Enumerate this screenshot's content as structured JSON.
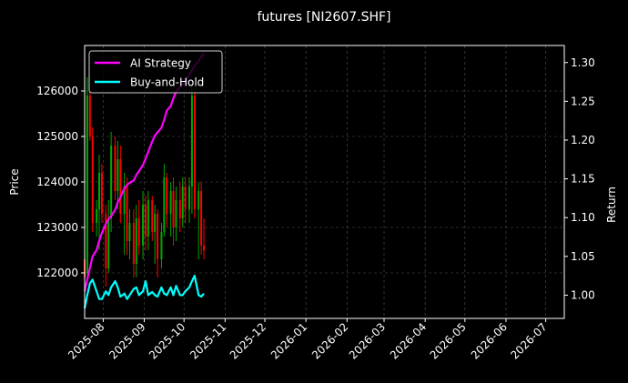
{
  "chart_data": {
    "type": "candlestick+line",
    "title": "futures [NI2607.SHF]",
    "xlabel": "",
    "ylabel_left": "Price",
    "ylabel_right": "Return",
    "x_tick_labels": [
      "2025-08",
      "2025-09",
      "2025-10",
      "2025-11",
      "2025-12",
      "2026-01",
      "2026-02",
      "2026-03",
      "2026-04",
      "2026-05",
      "2026-06",
      "2026-07"
    ],
    "y_left_ticks": [
      122000,
      123000,
      124000,
      125000,
      126000
    ],
    "y_right_ticks": [
      1.0,
      1.05,
      1.1,
      1.15,
      1.2,
      1.25,
      1.3
    ],
    "y_right_tick_labels": [
      "1.00",
      "1.05",
      "1.10",
      "1.15",
      "1.20",
      "1.25",
      "1.30"
    ],
    "y_left_lim": [
      121000,
      127000
    ],
    "y_right_lim": [
      0.97,
      1.322
    ],
    "x_lim": [
      "2025-07-18",
      "2026-07-15"
    ],
    "grid": true,
    "legend_position": "top-left",
    "colors": {
      "background": "#000000",
      "ai_strategy": "#ff00ff",
      "buy_and_hold": "#00ffff",
      "up_candle": "#00aa00",
      "down_candle": "#ff0000",
      "grid": "#555555",
      "text": "#ffffff"
    },
    "series": [
      {
        "name": "AI Strategy",
        "axis": "right",
        "x": [
          "2025-07-18",
          "2025-07-20",
          "2025-07-22",
          "2025-07-24",
          "2025-07-27",
          "2025-07-29",
          "2025-07-31",
          "2025-08-03",
          "2025-08-05",
          "2025-08-07",
          "2025-08-10",
          "2025-08-12",
          "2025-08-14",
          "2025-08-17",
          "2025-08-19",
          "2025-08-21",
          "2025-08-24",
          "2025-08-26",
          "2025-08-28",
          "2025-08-31",
          "2025-09-02",
          "2025-09-04",
          "2025-09-07",
          "2025-09-09",
          "2025-09-11",
          "2025-09-14",
          "2025-09-16",
          "2025-09-18",
          "2025-09-21",
          "2025-09-23",
          "2025-09-25",
          "2025-09-28",
          "2025-09-30",
          "2025-10-02",
          "2025-10-05",
          "2025-10-07",
          "2025-10-09",
          "2025-10-12",
          "2025-10-16"
        ],
        "values": [
          1.005,
          1.02,
          1.035,
          1.05,
          1.058,
          1.07,
          1.08,
          1.092,
          1.098,
          1.102,
          1.11,
          1.12,
          1.126,
          1.138,
          1.142,
          1.145,
          1.148,
          1.155,
          1.16,
          1.168,
          1.176,
          1.185,
          1.198,
          1.206,
          1.21,
          1.216,
          1.226,
          1.238,
          1.244,
          1.254,
          1.262,
          1.268,
          1.272,
          1.276,
          1.284,
          1.29,
          1.296,
          1.302,
          1.312
        ]
      },
      {
        "name": "Buy-and-Hold",
        "axis": "right",
        "x": [
          "2025-07-18",
          "2025-07-20",
          "2025-07-22",
          "2025-07-24",
          "2025-07-27",
          "2025-07-29",
          "2025-07-31",
          "2025-08-03",
          "2025-08-05",
          "2025-08-07",
          "2025-08-10",
          "2025-08-12",
          "2025-08-14",
          "2025-08-17",
          "2025-08-19",
          "2025-08-21",
          "2025-08-24",
          "2025-08-26",
          "2025-08-28",
          "2025-08-31",
          "2025-09-02",
          "2025-09-04",
          "2025-09-07",
          "2025-09-09",
          "2025-09-11",
          "2025-09-14",
          "2025-09-16",
          "2025-09-18",
          "2025-09-21",
          "2025-09-23",
          "2025-09-25",
          "2025-09-28",
          "2025-09-30",
          "2025-10-02",
          "2025-10-05",
          "2025-10-07",
          "2025-10-09",
          "2025-10-12",
          "2025-10-14",
          "2025-10-16"
        ],
        "values": [
          0.983,
          1.0,
          1.015,
          1.02,
          1.005,
          0.995,
          0.995,
          1.005,
          1.0,
          1.01,
          1.018,
          1.01,
          0.998,
          1.002,
          0.995,
          1.0,
          1.008,
          1.01,
          1.0,
          1.005,
          1.018,
          1.0,
          1.004,
          1.0,
          0.998,
          1.01,
          1.002,
          1.0,
          1.01,
          1.0,
          1.012,
          1.0,
          1.0,
          1.005,
          1.01,
          1.018,
          1.025,
          1.0,
          0.998,
          1.002
        ]
      }
    ],
    "candles": [
      {
        "date": "2025-07-18",
        "open": 122300,
        "high": 122700,
        "low": 121700,
        "close": 121900
      },
      {
        "date": "2025-07-20",
        "open": 122000,
        "high": 126300,
        "low": 121900,
        "close": 125900
      },
      {
        "date": "2025-07-22",
        "open": 125900,
        "high": 126000,
        "low": 124900,
        "close": 125000
      },
      {
        "date": "2025-07-24",
        "open": 125000,
        "high": 125200,
        "low": 122900,
        "close": 123100
      },
      {
        "date": "2025-07-27",
        "open": 123100,
        "high": 123600,
        "low": 122800,
        "close": 123400
      },
      {
        "date": "2025-07-29",
        "open": 123400,
        "high": 124600,
        "low": 122500,
        "close": 124200
      },
      {
        "date": "2025-07-31",
        "open": 124200,
        "high": 124400,
        "low": 123100,
        "close": 123300
      },
      {
        "date": "2025-08-03",
        "open": 123300,
        "high": 123500,
        "low": 121700,
        "close": 122100
      },
      {
        "date": "2025-08-05",
        "open": 122100,
        "high": 123600,
        "low": 122000,
        "close": 123200
      },
      {
        "date": "2025-08-07",
        "open": 123200,
        "high": 125100,
        "low": 122900,
        "close": 124800
      },
      {
        "date": "2025-08-10",
        "open": 124800,
        "high": 125000,
        "low": 123600,
        "close": 123800
      },
      {
        "date": "2025-08-12",
        "open": 123800,
        "high": 124900,
        "low": 123400,
        "close": 124500
      },
      {
        "date": "2025-08-14",
        "open": 124500,
        "high": 124800,
        "low": 123100,
        "close": 123300
      },
      {
        "date": "2025-08-17",
        "open": 123300,
        "high": 124200,
        "low": 122400,
        "close": 123900
      },
      {
        "date": "2025-08-19",
        "open": 123900,
        "high": 124100,
        "low": 122400,
        "close": 122700
      },
      {
        "date": "2025-08-21",
        "open": 122700,
        "high": 123400,
        "low": 122300,
        "close": 123100
      },
      {
        "date": "2025-08-24",
        "open": 123100,
        "high": 123400,
        "low": 121900,
        "close": 122200
      },
      {
        "date": "2025-08-26",
        "open": 122200,
        "high": 123500,
        "low": 121900,
        "close": 123200
      },
      {
        "date": "2025-08-28",
        "open": 123200,
        "high": 123600,
        "low": 122400,
        "close": 122600
      },
      {
        "date": "2025-08-31",
        "open": 122600,
        "high": 123800,
        "low": 122300,
        "close": 123500
      },
      {
        "date": "2025-09-02",
        "open": 123500,
        "high": 123700,
        "low": 122500,
        "close": 122800
      },
      {
        "date": "2025-09-04",
        "open": 122800,
        "high": 123800,
        "low": 122500,
        "close": 123600
      },
      {
        "date": "2025-09-07",
        "open": 123600,
        "high": 123700,
        "low": 122700,
        "close": 122900
      },
      {
        "date": "2025-09-09",
        "open": 122900,
        "high": 123500,
        "low": 122200,
        "close": 123300
      },
      {
        "date": "2025-09-11",
        "open": 123300,
        "high": 123400,
        "low": 121900,
        "close": 122300
      },
      {
        "date": "2025-09-14",
        "open": 122300,
        "high": 123100,
        "low": 122100,
        "close": 122900
      },
      {
        "date": "2025-09-16",
        "open": 122900,
        "high": 124400,
        "low": 122800,
        "close": 124100
      },
      {
        "date": "2025-09-18",
        "open": 124100,
        "high": 124200,
        "low": 123000,
        "close": 123300
      },
      {
        "date": "2025-09-21",
        "open": 123300,
        "high": 124000,
        "low": 122800,
        "close": 123800
      },
      {
        "date": "2025-09-23",
        "open": 123800,
        "high": 124100,
        "low": 122600,
        "close": 123000
      },
      {
        "date": "2025-09-25",
        "open": 123000,
        "high": 123900,
        "low": 122700,
        "close": 123600
      },
      {
        "date": "2025-09-28",
        "open": 123600,
        "high": 124000,
        "low": 122900,
        "close": 123200
      },
      {
        "date": "2025-09-30",
        "open": 123200,
        "high": 124100,
        "low": 123000,
        "close": 123900
      },
      {
        "date": "2025-10-02",
        "open": 123900,
        "high": 124100,
        "low": 123100,
        "close": 123400
      },
      {
        "date": "2025-10-05",
        "open": 123400,
        "high": 124100,
        "low": 123100,
        "close": 123900
      },
      {
        "date": "2025-10-07",
        "open": 123900,
        "high": 126200,
        "low": 123300,
        "close": 125900
      },
      {
        "date": "2025-10-09",
        "open": 125900,
        "high": 126000,
        "low": 123200,
        "close": 123400
      },
      {
        "date": "2025-10-12",
        "open": 123400,
        "high": 124000,
        "low": 122300,
        "close": 123800
      },
      {
        "date": "2025-10-14",
        "open": 123800,
        "high": 124000,
        "low": 122400,
        "close": 122600
      },
      {
        "date": "2025-10-16",
        "open": 122600,
        "high": 123200,
        "low": 122300,
        "close": 122500
      }
    ]
  }
}
